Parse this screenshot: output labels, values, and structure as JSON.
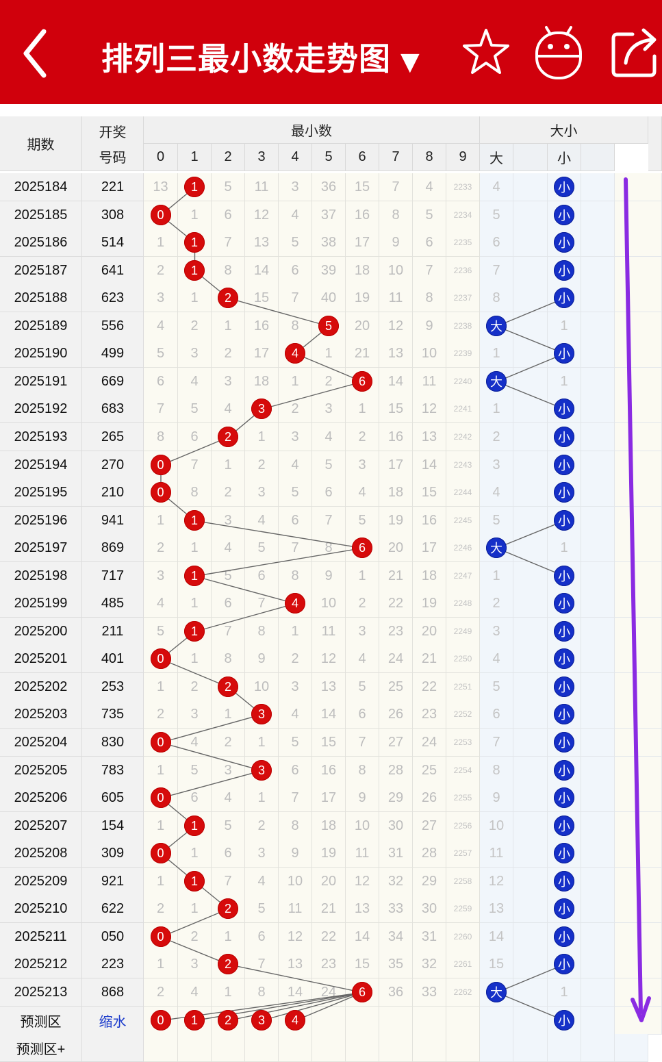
{
  "header": {
    "title": "排列三最小数走势图",
    "caret": "▼",
    "icons": [
      "back-arrow-icon",
      "star-icon",
      "robot-icon",
      "share-icon"
    ]
  },
  "table_header": {
    "period": "期数",
    "draw_line1": "开奖",
    "draw_line2": "号码",
    "min_group": "最小数",
    "size_group": "大小",
    "digits": [
      "0",
      "1",
      "2",
      "3",
      "4",
      "5",
      "6",
      "7",
      "8",
      "9"
    ],
    "size_cols": [
      "大",
      "",
      "小",
      ""
    ]
  },
  "rows": [
    {
      "period": "2025184",
      "draw": "221",
      "vals": [
        "13",
        "1",
        "5",
        "11",
        "3",
        "36",
        "15",
        "7",
        "4",
        "2233"
      ],
      "min": 1,
      "size_big": "4",
      "size_small": "小",
      "is_big": false
    },
    {
      "period": "2025185",
      "draw": "308",
      "vals": [
        "0",
        "1",
        "6",
        "12",
        "4",
        "37",
        "16",
        "8",
        "5",
        "2234"
      ],
      "min": 0,
      "size_big": "5",
      "size_small": "小",
      "is_big": false
    },
    {
      "period": "2025186",
      "draw": "514",
      "vals": [
        "1",
        "1",
        "7",
        "13",
        "5",
        "38",
        "17",
        "9",
        "6",
        "2235"
      ],
      "min": 1,
      "size_big": "6",
      "size_small": "小",
      "is_big": false
    },
    {
      "period": "2025187",
      "draw": "641",
      "vals": [
        "2",
        "1",
        "8",
        "14",
        "6",
        "39",
        "18",
        "10",
        "7",
        "2236"
      ],
      "min": 1,
      "size_big": "7",
      "size_small": "小",
      "is_big": false
    },
    {
      "period": "2025188",
      "draw": "623",
      "vals": [
        "3",
        "1",
        "2",
        "15",
        "7",
        "40",
        "19",
        "11",
        "8",
        "2237"
      ],
      "min": 2,
      "size_big": "8",
      "size_small": "小",
      "is_big": false
    },
    {
      "period": "2025189",
      "draw": "556",
      "vals": [
        "4",
        "2",
        "1",
        "16",
        "8",
        "5",
        "20",
        "12",
        "9",
        "2238"
      ],
      "min": 5,
      "size_big": "大",
      "size_small": "1",
      "is_big": true
    },
    {
      "period": "2025190",
      "draw": "499",
      "vals": [
        "5",
        "3",
        "2",
        "17",
        "4",
        "1",
        "21",
        "13",
        "10",
        "2239"
      ],
      "min": 4,
      "size_big": "1",
      "size_small": "小",
      "is_big": false
    },
    {
      "period": "2025191",
      "draw": "669",
      "vals": [
        "6",
        "4",
        "3",
        "18",
        "1",
        "2",
        "6",
        "14",
        "11",
        "2240"
      ],
      "min": 6,
      "size_big": "大",
      "size_small": "1",
      "is_big": true
    },
    {
      "period": "2025192",
      "draw": "683",
      "vals": [
        "7",
        "5",
        "4",
        "3",
        "2",
        "3",
        "1",
        "15",
        "12",
        "2241"
      ],
      "min": 3,
      "size_big": "1",
      "size_small": "小",
      "is_big": false
    },
    {
      "period": "2025193",
      "draw": "265",
      "vals": [
        "8",
        "6",
        "2",
        "1",
        "3",
        "4",
        "2",
        "16",
        "13",
        "2242"
      ],
      "min": 2,
      "size_big": "2",
      "size_small": "小",
      "is_big": false
    },
    {
      "period": "2025194",
      "draw": "270",
      "vals": [
        "0",
        "7",
        "1",
        "2",
        "4",
        "5",
        "3",
        "17",
        "14",
        "2243"
      ],
      "min": 0,
      "size_big": "3",
      "size_small": "小",
      "is_big": false
    },
    {
      "period": "2025195",
      "draw": "210",
      "vals": [
        "0",
        "8",
        "2",
        "3",
        "5",
        "6",
        "4",
        "18",
        "15",
        "2244"
      ],
      "min": 0,
      "size_big": "4",
      "size_small": "小",
      "is_big": false
    },
    {
      "period": "2025196",
      "draw": "941",
      "vals": [
        "1",
        "1",
        "3",
        "4",
        "6",
        "7",
        "5",
        "19",
        "16",
        "2245"
      ],
      "min": 1,
      "size_big": "5",
      "size_small": "小",
      "is_big": false
    },
    {
      "period": "2025197",
      "draw": "869",
      "vals": [
        "2",
        "1",
        "4",
        "5",
        "7",
        "8",
        "6",
        "20",
        "17",
        "2246"
      ],
      "min": 6,
      "size_big": "大",
      "size_small": "1",
      "is_big": true
    },
    {
      "period": "2025198",
      "draw": "717",
      "vals": [
        "3",
        "1",
        "5",
        "6",
        "8",
        "9",
        "1",
        "21",
        "18",
        "2247"
      ],
      "min": 1,
      "size_big": "1",
      "size_small": "小",
      "is_big": false
    },
    {
      "period": "2025199",
      "draw": "485",
      "vals": [
        "4",
        "1",
        "6",
        "7",
        "4",
        "10",
        "2",
        "22",
        "19",
        "2248"
      ],
      "min": 4,
      "size_big": "2",
      "size_small": "小",
      "is_big": false
    },
    {
      "period": "2025200",
      "draw": "211",
      "vals": [
        "5",
        "1",
        "7",
        "8",
        "1",
        "11",
        "3",
        "23",
        "20",
        "2249"
      ],
      "min": 1,
      "size_big": "3",
      "size_small": "小",
      "is_big": false
    },
    {
      "period": "2025201",
      "draw": "401",
      "vals": [
        "0",
        "1",
        "8",
        "9",
        "2",
        "12",
        "4",
        "24",
        "21",
        "2250"
      ],
      "min": 0,
      "size_big": "4",
      "size_small": "小",
      "is_big": false
    },
    {
      "period": "2025202",
      "draw": "253",
      "vals": [
        "1",
        "2",
        "2",
        "10",
        "3",
        "13",
        "5",
        "25",
        "22",
        "2251"
      ],
      "min": 2,
      "size_big": "5",
      "size_small": "小",
      "is_big": false
    },
    {
      "period": "2025203",
      "draw": "735",
      "vals": [
        "2",
        "3",
        "1",
        "3",
        "4",
        "14",
        "6",
        "26",
        "23",
        "2252"
      ],
      "min": 3,
      "size_big": "6",
      "size_small": "小",
      "is_big": false
    },
    {
      "period": "2025204",
      "draw": "830",
      "vals": [
        "0",
        "4",
        "2",
        "1",
        "5",
        "15",
        "7",
        "27",
        "24",
        "2253"
      ],
      "min": 0,
      "size_big": "7",
      "size_small": "小",
      "is_big": false
    },
    {
      "period": "2025205",
      "draw": "783",
      "vals": [
        "1",
        "5",
        "3",
        "3",
        "6",
        "16",
        "8",
        "28",
        "25",
        "2254"
      ],
      "min": 3,
      "size_big": "8",
      "size_small": "小",
      "is_big": false
    },
    {
      "period": "2025206",
      "draw": "605",
      "vals": [
        "0",
        "6",
        "4",
        "1",
        "7",
        "17",
        "9",
        "29",
        "26",
        "2255"
      ],
      "min": 0,
      "size_big": "9",
      "size_small": "小",
      "is_big": false
    },
    {
      "period": "2025207",
      "draw": "154",
      "vals": [
        "1",
        "1",
        "5",
        "2",
        "8",
        "18",
        "10",
        "30",
        "27",
        "2256"
      ],
      "min": 1,
      "size_big": "10",
      "size_small": "小",
      "is_big": false
    },
    {
      "period": "2025208",
      "draw": "309",
      "vals": [
        "0",
        "1",
        "6",
        "3",
        "9",
        "19",
        "11",
        "31",
        "28",
        "2257"
      ],
      "min": 0,
      "size_big": "11",
      "size_small": "小",
      "is_big": false
    },
    {
      "period": "2025209",
      "draw": "921",
      "vals": [
        "1",
        "1",
        "7",
        "4",
        "10",
        "20",
        "12",
        "32",
        "29",
        "2258"
      ],
      "min": 1,
      "size_big": "12",
      "size_small": "小",
      "is_big": false
    },
    {
      "period": "2025210",
      "draw": "622",
      "vals": [
        "2",
        "1",
        "2",
        "5",
        "11",
        "21",
        "13",
        "33",
        "30",
        "2259"
      ],
      "min": 2,
      "size_big": "13",
      "size_small": "小",
      "is_big": false
    },
    {
      "period": "2025211",
      "draw": "050",
      "vals": [
        "0",
        "2",
        "1",
        "6",
        "12",
        "22",
        "14",
        "34",
        "31",
        "2260"
      ],
      "min": 0,
      "size_big": "14",
      "size_small": "小",
      "is_big": false
    },
    {
      "period": "2025212",
      "draw": "223",
      "vals": [
        "1",
        "3",
        "2",
        "7",
        "13",
        "23",
        "15",
        "35",
        "32",
        "2261"
      ],
      "min": 2,
      "size_big": "15",
      "size_small": "小",
      "is_big": false
    },
    {
      "period": "2025213",
      "draw": "868",
      "vals": [
        "2",
        "4",
        "1",
        "8",
        "14",
        "24",
        "6",
        "36",
        "33",
        "2262"
      ],
      "min": 6,
      "size_big": "大",
      "size_small": "1",
      "is_big": true
    }
  ],
  "prediction": {
    "label": "预测区",
    "draw_text": "缩水",
    "balls": [
      "0",
      "1",
      "2",
      "3",
      "4"
    ],
    "size_small": "小"
  },
  "prediction2": {
    "label": "预测区+"
  },
  "colors": {
    "header_red": "#d0000c",
    "ball_red": "#d60b0b",
    "ball_blue": "#1530c8",
    "annotation_arrow": "#8a2be2"
  }
}
